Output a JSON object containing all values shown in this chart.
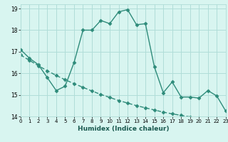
{
  "line1_x": [
    0,
    1,
    2,
    3,
    4,
    5,
    6,
    7,
    8,
    9,
    10,
    11,
    12,
    13,
    14,
    15,
    16,
    17,
    18,
    19,
    20,
    21,
    22,
    23
  ],
  "line1_y": [
    17.1,
    16.7,
    16.4,
    15.8,
    15.2,
    15.4,
    16.5,
    18.0,
    18.0,
    18.45,
    18.3,
    18.85,
    18.95,
    18.25,
    18.3,
    16.3,
    15.1,
    15.6,
    14.9,
    14.9,
    14.85,
    15.2,
    14.95,
    14.25
  ],
  "line2_x": [
    0,
    1,
    2,
    3,
    4,
    5,
    6,
    7,
    8,
    9,
    10,
    11,
    12,
    13,
    14,
    15,
    16,
    17,
    18,
    19,
    20,
    21,
    22,
    23
  ],
  "line2_y": [
    16.85,
    16.6,
    16.35,
    16.12,
    15.9,
    15.7,
    15.52,
    15.35,
    15.18,
    15.02,
    14.88,
    14.74,
    14.62,
    14.5,
    14.4,
    14.3,
    14.2,
    14.12,
    14.05,
    13.98,
    13.92,
    13.87,
    13.82,
    13.78
  ],
  "line_color": "#2e8b7a",
  "background_color": "#d8f5f0",
  "grid_color": "#b0ddd8",
  "xlabel": "Humidex (Indice chaleur)",
  "xlim": [
    0,
    23
  ],
  "ylim": [
    14,
    19.2
  ],
  "yticks": [
    14,
    15,
    16,
    17,
    18,
    19
  ],
  "xticks": [
    0,
    1,
    2,
    3,
    4,
    5,
    6,
    7,
    8,
    9,
    10,
    11,
    12,
    13,
    14,
    15,
    16,
    17,
    18,
    19,
    20,
    21,
    22,
    23
  ],
  "marker": "D",
  "markersize": 2.5,
  "linewidth": 1.0,
  "tick_fontsize": 5.5,
  "xlabel_fontsize": 6.5,
  "xlabel_color": "#1a5a50"
}
